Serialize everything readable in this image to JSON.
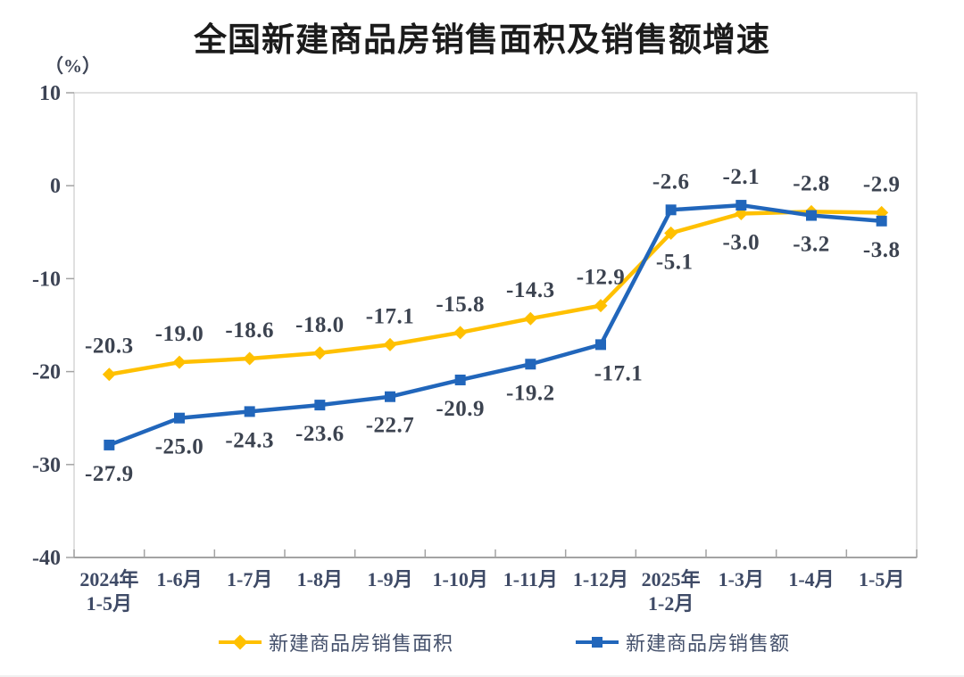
{
  "header": {
    "title": "全国新建商品房销售面积及销售额增速",
    "unit_label": "（%）"
  },
  "chart_data": {
    "type": "line",
    "title": "全国新建商品房销售面积及销售额增速",
    "ylabel": "（%）",
    "ylim": [
      -40,
      10
    ],
    "y_ticks": [
      10,
      0,
      -10,
      -20,
      -30,
      -40
    ],
    "grid": false,
    "legend_position": "bottom",
    "categories": [
      "2024年\n1-5月",
      "1-6月",
      "1-7月",
      "1-8月",
      "1-9月",
      "1-10月",
      "1-11月",
      "1-12月",
      "2025年\n1-2月",
      "1-3月",
      "1-4月",
      "1-5月"
    ],
    "series": [
      {
        "name": "新建商品房销售面积",
        "color": "#FFC000",
        "marker": "diamond",
        "values": [
          -20.3,
          -19.0,
          -18.6,
          -18.0,
          -17.1,
          -15.8,
          -14.3,
          -12.9,
          -5.1,
          -3.0,
          -2.8,
          -2.9
        ],
        "label_positions": [
          "above",
          "above",
          "above",
          "above",
          "above",
          "above",
          "above",
          "above",
          "below",
          "below",
          "above",
          "above"
        ]
      },
      {
        "name": "新建商品房销售额",
        "color": "#2166BB",
        "marker": "square",
        "values": [
          -27.9,
          -25.0,
          -24.3,
          -23.6,
          -22.7,
          -20.9,
          -19.2,
          -17.1,
          -2.6,
          -2.1,
          -3.2,
          -3.8
        ],
        "label_positions": [
          "below",
          "below",
          "below",
          "below",
          "below",
          "below",
          "below",
          "below",
          "above",
          "above",
          "below",
          "below"
        ]
      }
    ],
    "colors": {
      "plot_border": "#d6d6d6",
      "axis_line": "#a3a3a3",
      "axis_text": "#3d4455",
      "data_label_text": "#3c4350",
      "legend_text": "#44506b"
    }
  }
}
